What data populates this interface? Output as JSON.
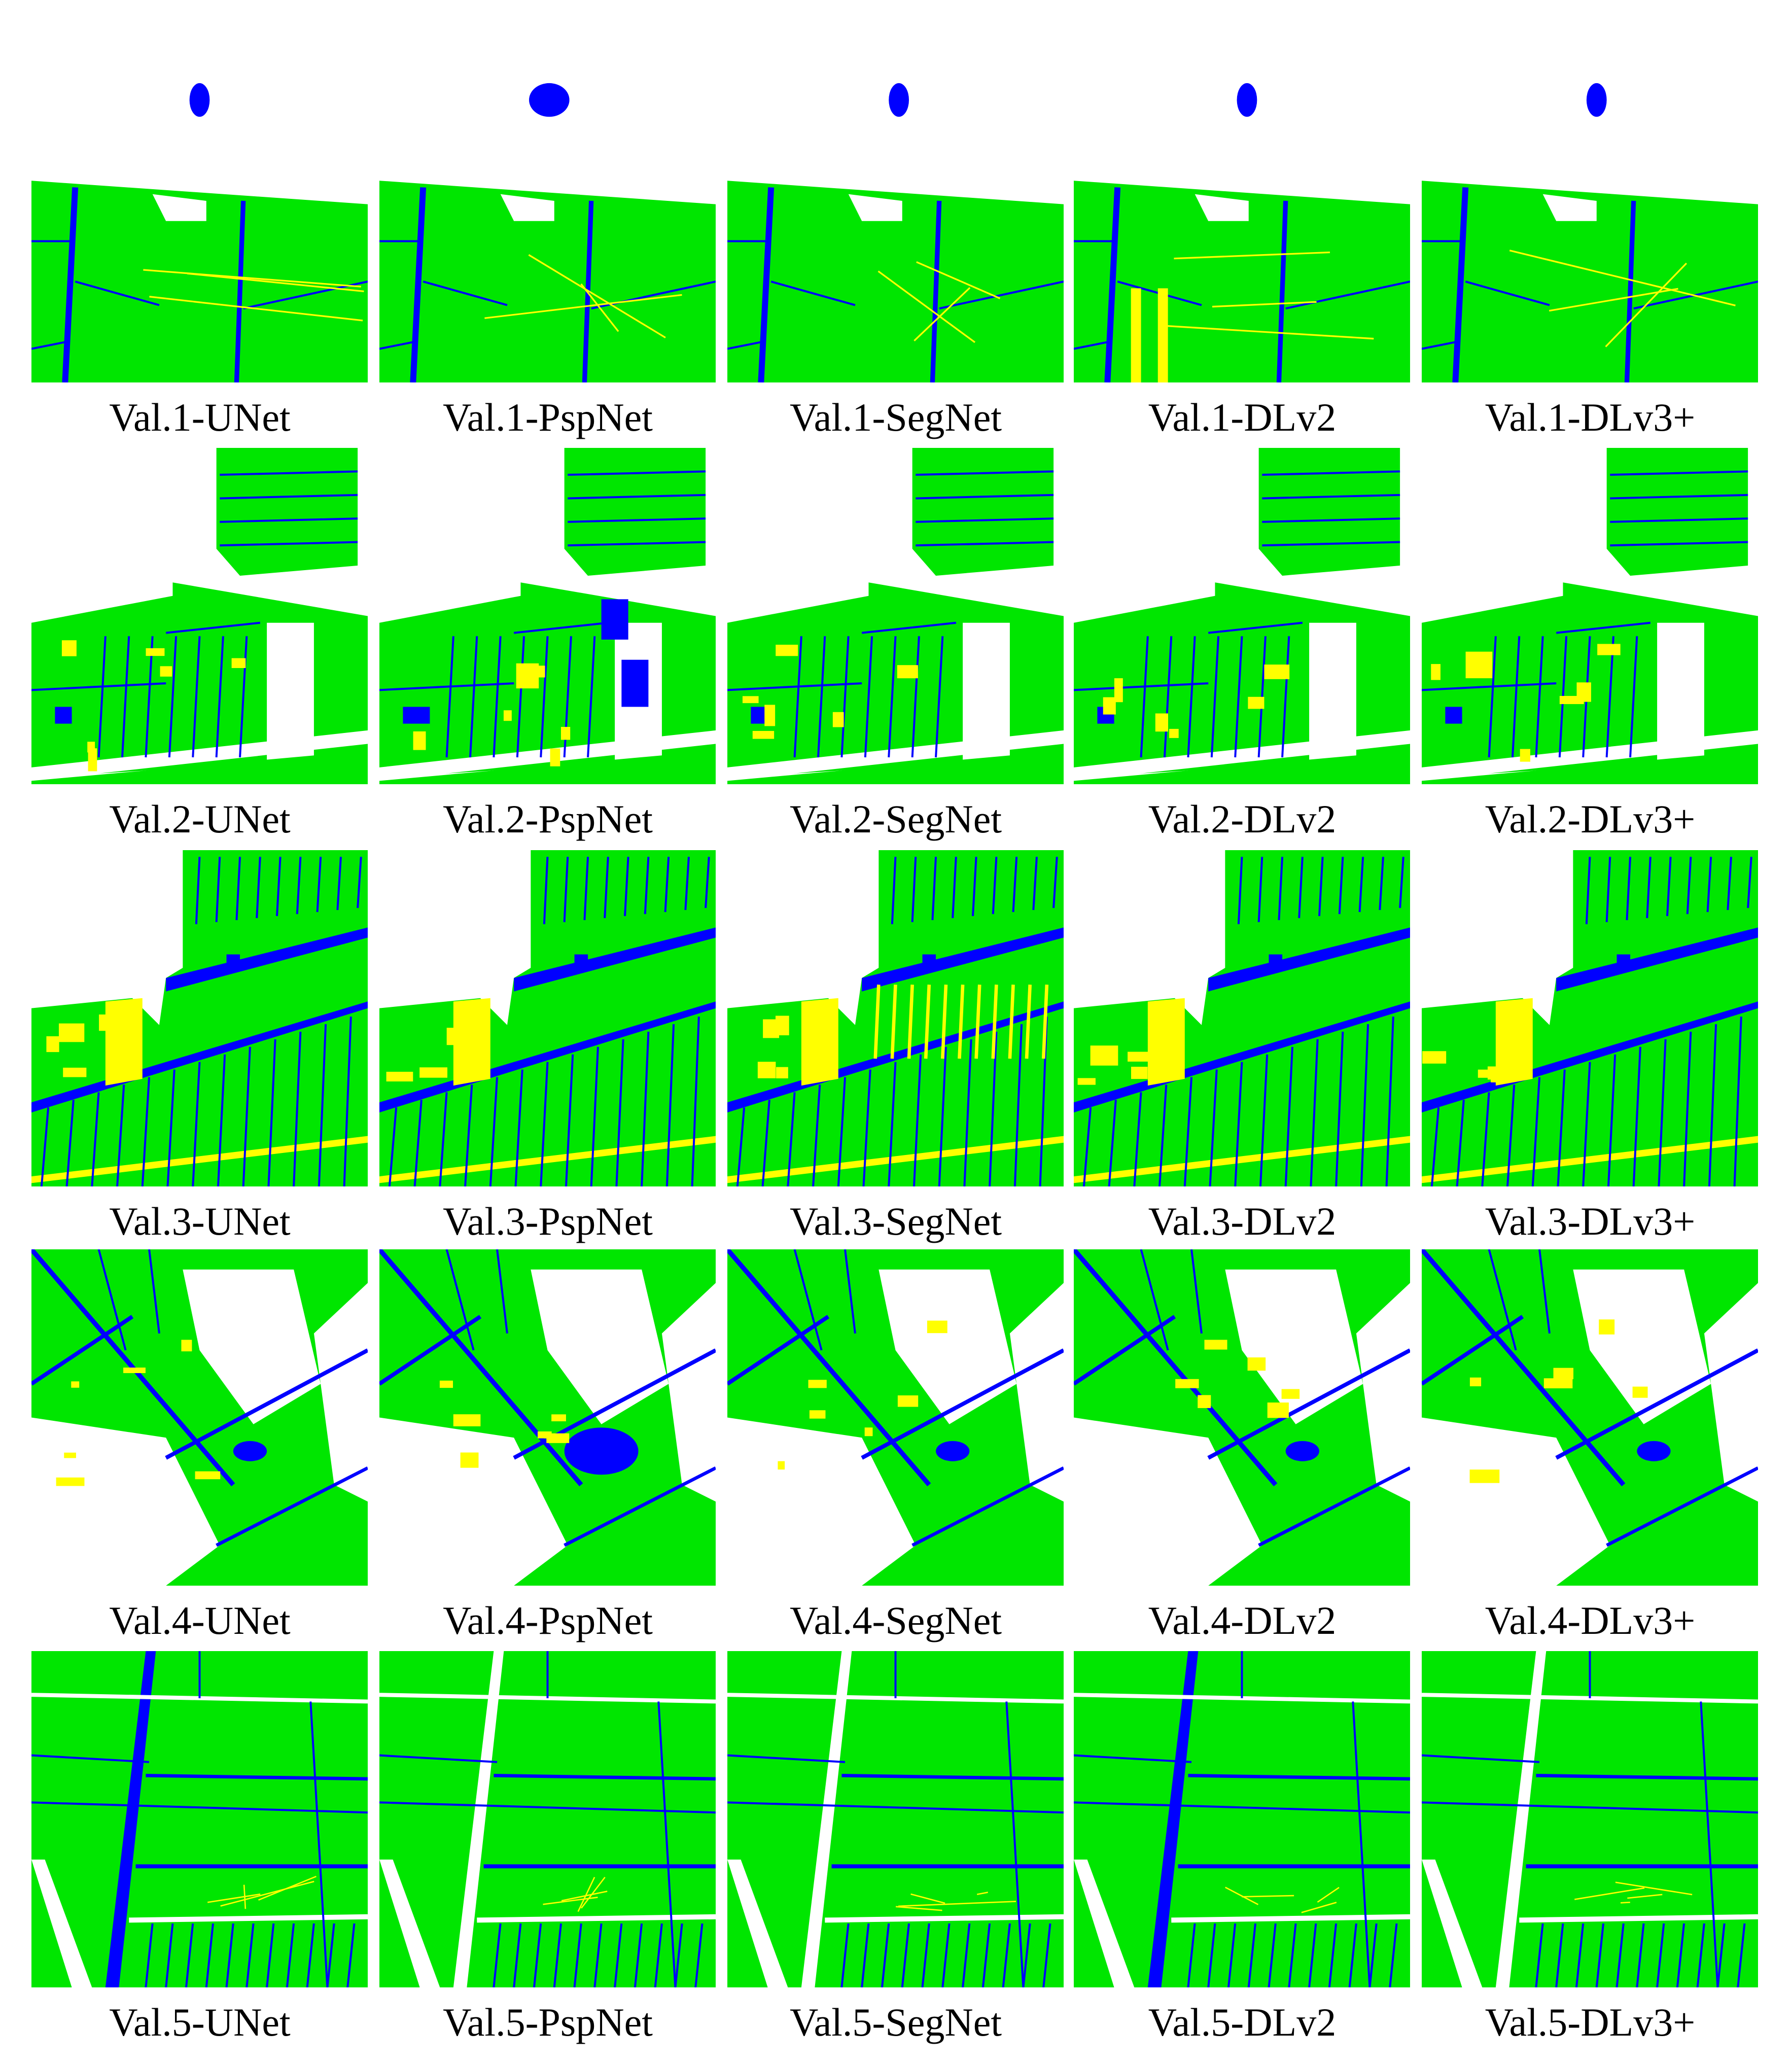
{
  "rows": [
    {
      "panels": [
        {
          "caption": "Val.1-UNet"
        },
        {
          "caption": "Val.1-PspNet"
        },
        {
          "caption": "Val.1-SegNet"
        },
        {
          "caption": "Val.1-DLv2"
        },
        {
          "caption": "Val.1-DLv3+"
        }
      ]
    },
    {
      "panels": [
        {
          "caption": "Val.2-UNet"
        },
        {
          "caption": "Val.2-PspNet"
        },
        {
          "caption": "Val.2-SegNet"
        },
        {
          "caption": "Val.2-DLv2"
        },
        {
          "caption": "Val.2-DLv3+"
        }
      ]
    },
    {
      "panels": [
        {
          "caption": "Val.3-UNet"
        },
        {
          "caption": "Val.3-PspNet"
        },
        {
          "caption": "Val.3-SegNet"
        },
        {
          "caption": "Val.3-DLv2"
        },
        {
          "caption": "Val.3-DLv3+"
        }
      ]
    },
    {
      "panels": [
        {
          "caption": "Val.4-UNet"
        },
        {
          "caption": "Val.4-PspNet"
        },
        {
          "caption": "Val.4-SegNet"
        },
        {
          "caption": "Val.4-DLv2"
        },
        {
          "caption": "Val.4-DLv3+"
        }
      ]
    },
    {
      "panels": [
        {
          "caption": "Val.5-UNet"
        },
        {
          "caption": "Val.5-PspNet"
        },
        {
          "caption": "Val.5-SegNet"
        },
        {
          "caption": "Val.5-DLv2"
        },
        {
          "caption": "Val.5-DLv3+"
        }
      ]
    }
  ]
}
